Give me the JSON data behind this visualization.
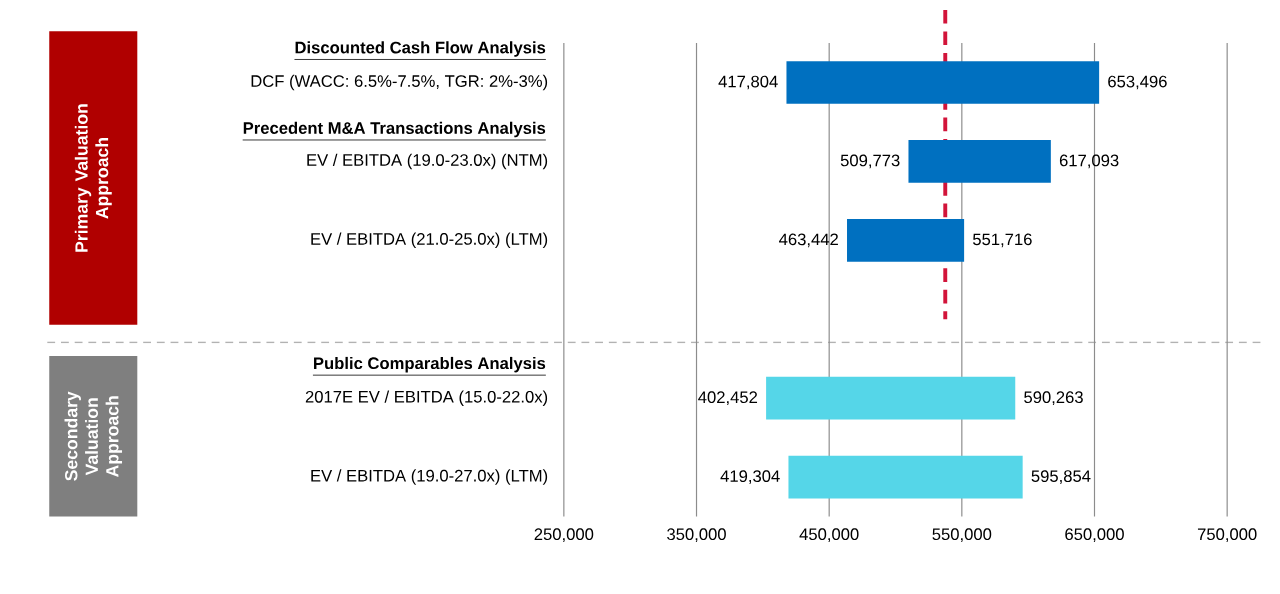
{
  "chart_data": {
    "type": "bar",
    "orientation": "horizontal",
    "categories": [
      "DCF (WACC: 6.5%-7.5%, TGR: 2%-3%)",
      "EV / EBITDA (19.0-23.0x) (NTM)",
      "EV / EBITDA (21.0-25.0x) (LTM)",
      null,
      "2017E EV / EBITDA (15.0-22.0x)",
      "EV / EBITDA (19.0-27.0x) (LTM)"
    ],
    "base": [
      417804,
      509773,
      463442,
      null,
      402452,
      419304
    ],
    "values": [
      235692,
      107320,
      88274,
      null,
      187811,
      176550
    ],
    "colors": [
      "#0070c0",
      "#0070c0",
      "#0070c0",
      null,
      "#55d6e8",
      "#55d6e8"
    ],
    "xlim": [
      250000,
      750000
    ],
    "xticks": [
      {
        "value": 250000,
        "label": "250,000"
      },
      {
        "value": 350000,
        "label": "350,000"
      },
      {
        "value": 450000,
        "label": "450,000"
      },
      {
        "value": 550000,
        "label": "550,000"
      },
      {
        "value": 650000,
        "label": "650,000"
      },
      {
        "value": 750000,
        "label": "750,000"
      }
    ],
    "grid": "x",
    "ref_lines": [
      {
        "axis": "x",
        "value": 537500,
        "color": "#d2143a",
        "line_style": "dashed"
      }
    ],
    "annotations": [
      "Primary Valuation Approach",
      "Secondary Valuation Approach",
      "Discounted Cash Flow Analysis",
      "Precedent M&A Transactions Analysis",
      "Public Comparables Analysis",
      {
        "text": "417,804",
        "x": 417804,
        "y": "DCF (WACC: 6.5%-7.5%, TGR: 2%-3%)"
      },
      {
        "text": "653,496",
        "x": 653496,
        "y": "DCF (WACC: 6.5%-7.5%, TGR: 2%-3%)"
      },
      {
        "text": "509,773",
        "x": 509773,
        "y": "EV / EBITDA (19.0-23.0x) (NTM)"
      },
      {
        "text": "617,093",
        "x": 617093,
        "y": "EV / EBITDA (19.0-23.0x) (NTM)"
      },
      {
        "text": "463,442",
        "x": 463442,
        "y": "EV / EBITDA (21.0-25.0x) (LTM)"
      },
      {
        "text": "551,716",
        "x": 551716,
        "y": "EV / EBITDA (21.0-25.0x) (LTM)"
      },
      {
        "text": "402,452",
        "x": 402452,
        "y": "2017E EV / EBITDA (15.0-22.0x)"
      },
      {
        "text": "590,263",
        "x": 590263,
        "y": "2017E EV / EBITDA (15.0-22.0x)"
      },
      {
        "text": "419,304",
        "x": 419304,
        "y": "EV / EBITDA (19.0-27.0x) (LTM)"
      },
      {
        "text": "595,854",
        "x": 595854,
        "y": "EV / EBITDA (19.0-27.0x) (LTM)"
      }
    ]
  }
}
